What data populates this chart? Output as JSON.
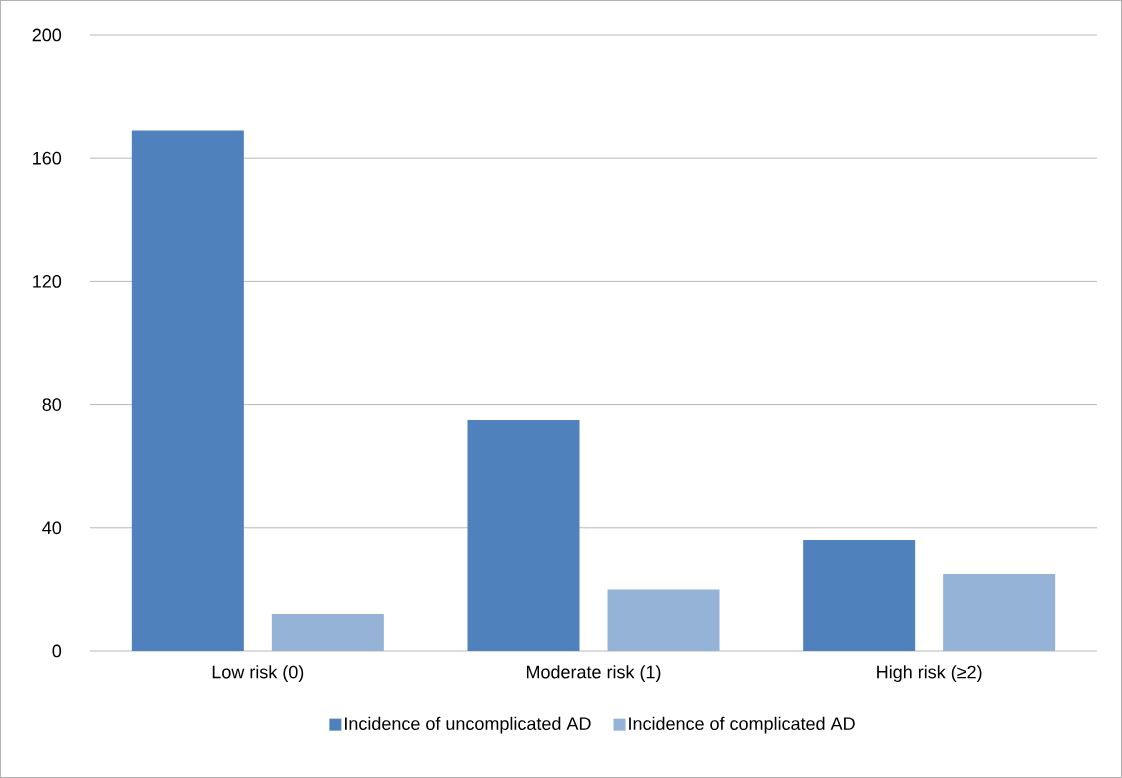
{
  "chart_data": {
    "type": "bar",
    "categories": [
      "Low risk (0)",
      "Moderate risk (1)",
      "High risk (≥2)"
    ],
    "series": [
      {
        "name": "Incidence of uncomplicated AD",
        "color": "#4f81bd",
        "values": [
          169,
          75,
          36
        ]
      },
      {
        "name": "Incidence of complicated AD",
        "color": "#95b3d7",
        "values": [
          12,
          20,
          25
        ]
      }
    ],
    "ylim": [
      0,
      200
    ],
    "yticks": [
      0,
      40,
      80,
      120,
      160,
      200
    ],
    "grid": "y",
    "legend": "bottom"
  }
}
